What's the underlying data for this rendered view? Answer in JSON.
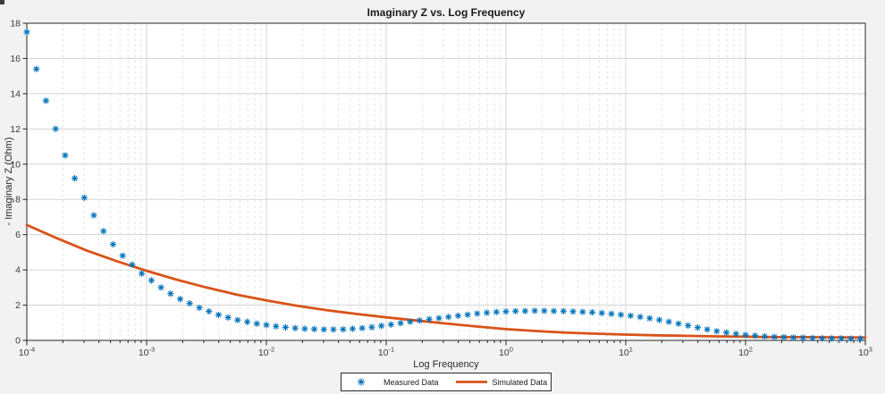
{
  "window": {
    "background": "#f2f2f2",
    "corner_color": "#3c3c3c"
  },
  "figure": {
    "title": "Imaginary Z vs. Log Frequency",
    "x_axis_label": "Log Frequency",
    "y_axis_label": "- Imaginary Z (Ohm)"
  },
  "legend": {
    "entries": [
      {
        "label": "Measured Data",
        "marker": "asterisk",
        "color": "#0072BD"
      },
      {
        "label": "Simulated Data",
        "marker": "line",
        "color": "#D95319"
      }
    ]
  },
  "style": {
    "plot_background": "#ffffff",
    "grid_major_color": "#d4d4d4",
    "grid_minor_color": "#dfdfdf",
    "axis_color": "#262626",
    "tick_label_color": "#3b3b3b"
  },
  "chart_data": {
    "type": "line",
    "title": "Imaginary Z vs. Log Frequency",
    "xlabel": "Log Frequency",
    "ylabel": "- Imaginary Z (Ohm)",
    "x_scale": "log",
    "xlim": [
      0.0001,
      1000
    ],
    "xlim_log10": [
      -4,
      3
    ],
    "ylim": [
      0,
      18
    ],
    "x_tick_exponents": [
      -4,
      -3,
      -2,
      -1,
      0,
      1,
      2,
      3
    ],
    "x_tick_labels": [
      "10^-4",
      "10^-3",
      "10^-2",
      "10^-1",
      "10^0",
      "10^1",
      "10^2",
      "10^3"
    ],
    "y_ticks": [
      0,
      2,
      4,
      6,
      8,
      10,
      12,
      14,
      16,
      18
    ],
    "grid": true,
    "x_minor_grid": true,
    "legend_position": "south-outside-centered",
    "series": [
      {
        "name": "Measured Data",
        "type": "scatter",
        "marker": "asterisk",
        "color": "#0072BD",
        "log10_x": [
          -4,
          -3.92,
          -3.84,
          -3.76,
          -3.68,
          -3.6,
          -3.52,
          -3.44,
          -3.36,
          -3.28,
          -3.2,
          -3.12,
          -3.04,
          -2.96,
          -2.88,
          -2.8,
          -2.72,
          -2.64,
          -2.56,
          -2.48,
          -2.4,
          -2.32,
          -2.24,
          -2.16,
          -2.08,
          -2,
          -1.92,
          -1.84,
          -1.76,
          -1.68,
          -1.6,
          -1.52,
          -1.44,
          -1.36,
          -1.28,
          -1.2,
          -1.12,
          -1.04,
          -0.96,
          -0.88,
          -0.8,
          -0.72,
          -0.64,
          -0.56,
          -0.48,
          -0.4,
          -0.32,
          -0.24,
          -0.16,
          -0.08,
          0,
          0.08,
          0.16,
          0.24,
          0.32,
          0.4,
          0.48,
          0.56,
          0.64,
          0.72,
          0.8,
          0.88,
          0.96,
          1.04,
          1.12,
          1.2,
          1.28,
          1.36,
          1.44,
          1.52,
          1.6,
          1.68,
          1.76,
          1.84,
          1.92,
          2,
          2.08,
          2.16,
          2.24,
          2.32,
          2.4,
          2.48,
          2.56,
          2.64,
          2.72,
          2.8,
          2.88,
          2.96
        ],
        "y": [
          17.5,
          15.4,
          13.6,
          12,
          10.5,
          9.2,
          8.1,
          7.1,
          6.2,
          5.45,
          4.8,
          4.3,
          3.8,
          3.4,
          3,
          2.65,
          2.35,
          2.1,
          1.85,
          1.65,
          1.45,
          1.3,
          1.15,
          1.05,
          0.95,
          0.87,
          0.8,
          0.74,
          0.7,
          0.66,
          0.64,
          0.62,
          0.62,
          0.63,
          0.66,
          0.7,
          0.75,
          0.82,
          0.9,
          0.98,
          1.06,
          1.13,
          1.2,
          1.26,
          1.33,
          1.4,
          1.46,
          1.52,
          1.57,
          1.61,
          1.64,
          1.66,
          1.67,
          1.68,
          1.68,
          1.67,
          1.66,
          1.64,
          1.62,
          1.59,
          1.55,
          1.51,
          1.46,
          1.4,
          1.33,
          1.25,
          1.16,
          1.06,
          0.95,
          0.84,
          0.73,
          0.62,
          0.52,
          0.44,
          0.37,
          0.31,
          0.27,
          0.23,
          0.2,
          0.18,
          0.16,
          0.15,
          0.13,
          0.12,
          0.11,
          0.11,
          0.1,
          0.1
        ]
      },
      {
        "name": "Simulated Data",
        "type": "line",
        "color": "#D95319",
        "line_width": 2.8,
        "log10_x": [
          -4,
          -3.75,
          -3.5,
          -3.25,
          -3,
          -2.75,
          -2.5,
          -2.25,
          -2,
          -1.75,
          -1.5,
          -1.25,
          -1,
          -0.75,
          -0.5,
          -0.25,
          0,
          0.25,
          0.5,
          0.75,
          1,
          1.25,
          1.5,
          1.75,
          2,
          2.25,
          2.5,
          2.75,
          3
        ],
        "y": [
          6.55,
          5.8,
          5.1,
          4.5,
          3.95,
          3.45,
          3,
          2.6,
          2.27,
          1.97,
          1.72,
          1.5,
          1.31,
          1.13,
          0.96,
          0.79,
          0.64,
          0.53,
          0.44,
          0.38,
          0.33,
          0.29,
          0.26,
          0.23,
          0.21,
          0.19,
          0.18,
          0.17,
          0.16
        ]
      }
    ]
  }
}
